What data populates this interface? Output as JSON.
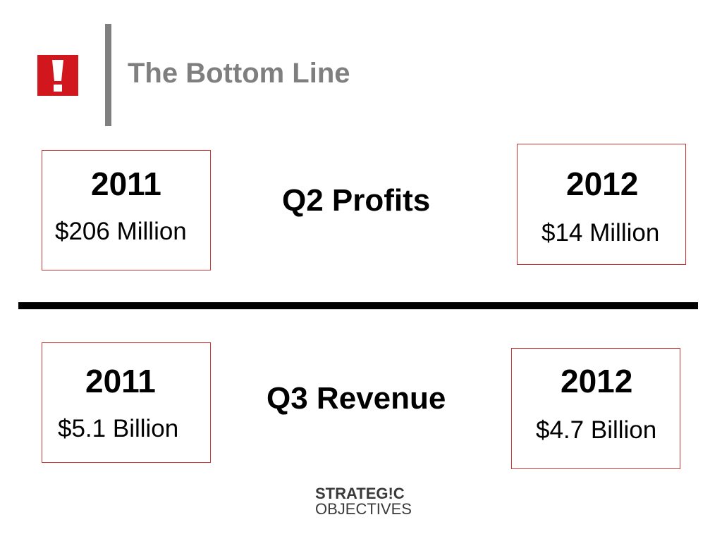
{
  "slide": {
    "title": "The Bottom Line",
    "badge_icon": "exclamation-icon",
    "badge_color": "#d2161e"
  },
  "sections": [
    {
      "metric": "Q2 Profits",
      "left": {
        "year": "2011",
        "value": "$206 Million"
      },
      "right": {
        "year": "2012",
        "value": "$14 Million"
      }
    },
    {
      "metric": "Q3 Revenue",
      "left": {
        "year": "2011",
        "value": "$5.1 Billion"
      },
      "right": {
        "year": "2012",
        "value": "$4.7 Billion"
      }
    }
  ],
  "logo": {
    "line1": "STRATEG!C",
    "line2": "OBJECTIVES",
    "accent_color": "#d2161e"
  }
}
